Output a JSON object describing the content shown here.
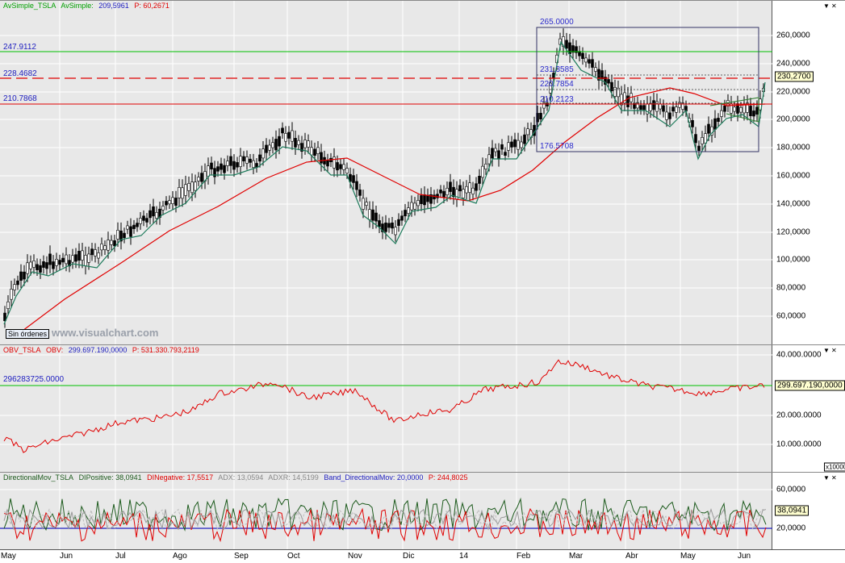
{
  "price_panel": {
    "legend": {
      "name": "AvSimple_TSLA",
      "name2": "AvSimple:",
      "v1": "209,5961",
      "p": "P: 60,2671"
    },
    "y_ticks": [
      "260,0000",
      "240,0000",
      "220,0000",
      "200,0000",
      "180,0000",
      "160,0000",
      "140,0000",
      "120,0000",
      "100,0000",
      "80,0000",
      "60,0000"
    ],
    "current_value": "230,2700",
    "levels": {
      "l1": "247.9112",
      "l2": "228.4682",
      "l3": "210.7868"
    },
    "box_labels": {
      "top": "265.0000",
      "r1": "231.3585",
      "r2": "220.7854",
      "r3": "210.2123",
      "bottom": "176.5708"
    },
    "badge": "Sin órdenes",
    "watermark": "www.visualchart.com"
  },
  "obv_panel": {
    "legend": {
      "name": "OBV_TSLA",
      "name2": "OBV:",
      "v1": "299.697.190,0000",
      "p": "P: 531.330.793,2119"
    },
    "level_label": "296283725.0000",
    "y_ticks": [
      "40.000.0000",
      "20.000.0000",
      "10.000.0000"
    ],
    "current_value": "299.697.190,0000",
    "scale_note": "x10000"
  },
  "dm_panel": {
    "legend": {
      "name": "DirectionalMov_TSLA",
      "dip": "DIPositive: 38,0941",
      "din": "DINegative: 17,5517",
      "adx": "ADX: 13,0594",
      "adxr": "ADXR: 14,5199",
      "band": "Band_DirectionalMov: 20,0000",
      "p": "P: 244,8025"
    },
    "y_ticks": [
      "60,0000",
      "20,0000"
    ],
    "current_value": "38,0941"
  },
  "x_labels": [
    "May",
    "Jun",
    "Jul",
    "Ago",
    "Sep",
    "Oct",
    "Nov",
    "Dic",
    "14",
    "Feb",
    "Mar",
    "Abr",
    "May",
    "Jun"
  ],
  "colors": {
    "green": "#00a000",
    "red": "#e00000",
    "blue": "#2020c0",
    "teal": "#1c7a5a"
  }
}
